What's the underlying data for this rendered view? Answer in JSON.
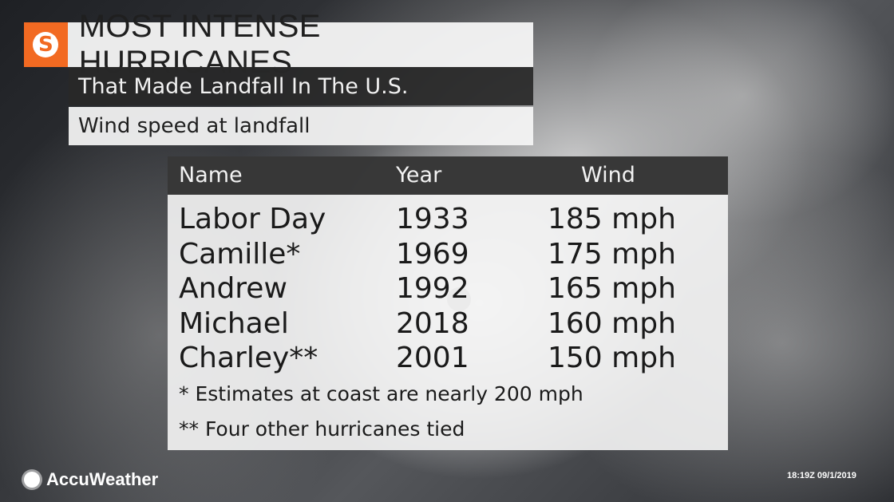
{
  "header": {
    "title": "MOST INTENSE HURRICANES",
    "subtitle": "That Made Landfall In The U.S.",
    "metric": "Wind speed at landfall",
    "logo_icon": "storm-logo-icon",
    "accent_color": "#f26a22"
  },
  "table": {
    "columns": [
      "Name",
      "Year",
      "Wind"
    ],
    "rows": [
      {
        "name": "Labor Day",
        "year": "1933",
        "wind": "185 mph"
      },
      {
        "name": "Camille*",
        "year": "1969",
        "wind": "175 mph"
      },
      {
        "name": "Andrew",
        "year": "1992",
        "wind": "165 mph"
      },
      {
        "name": "Michael",
        "year": "2018",
        "wind": "160 mph"
      },
      {
        "name": "Charley**",
        "year": "2001",
        "wind": "150 mph"
      }
    ],
    "notes": [
      "* Estimates at coast are nearly 200 mph",
      "** Four other hurricanes tied"
    ]
  },
  "footer": {
    "brand": "AccuWeather",
    "timestamp": "18:19Z 09/1/2019"
  }
}
